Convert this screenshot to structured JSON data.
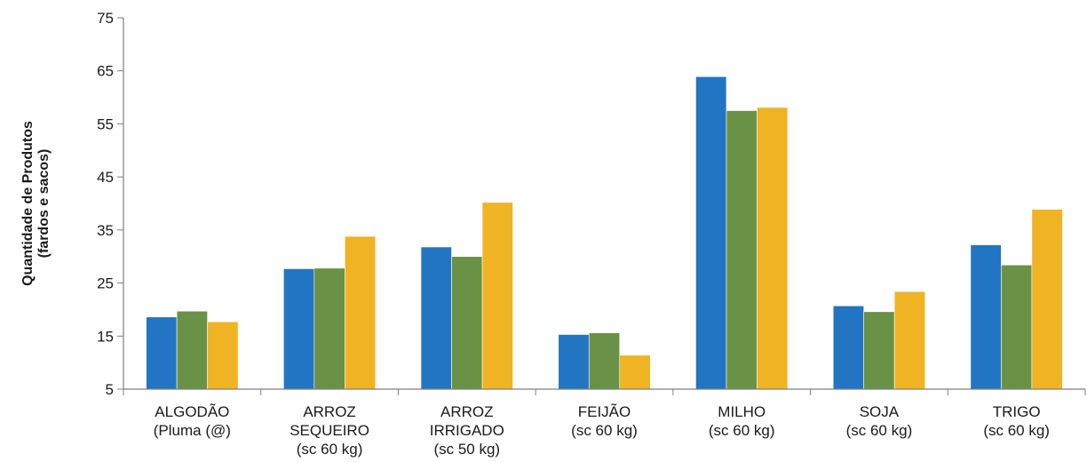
{
  "chart_data": {
    "type": "bar",
    "title": "",
    "xlabel": "",
    "ylabel": [
      "Quantidade de Produtos",
      "(fardos e sacos)"
    ],
    "ylim": [
      5,
      75
    ],
    "yticks": [
      5,
      15,
      25,
      35,
      45,
      55,
      65,
      75
    ],
    "grid": false,
    "legend": "none",
    "categories": [
      [
        "ALGODÃO",
        "(Pluma (@)"
      ],
      [
        "ARROZ",
        "SEQUEIRO",
        "(sc 60 kg)"
      ],
      [
        "ARROZ",
        "IRRIGADO",
        "(sc 50 kg)"
      ],
      [
        "FEIJÃO",
        "(sc 60 kg)"
      ],
      [
        "MILHO",
        "(sc 60 kg)"
      ],
      [
        "SOJA",
        "(sc 60 kg)"
      ],
      [
        "TRIGO",
        "(sc 60 kg)"
      ]
    ],
    "series": [
      {
        "color": "#2275c3",
        "values": [
          18.6,
          27.7,
          31.8,
          15.3,
          63.9,
          20.7,
          32.2
        ]
      },
      {
        "color": "#6a9246",
        "values": [
          19.7,
          27.8,
          30.0,
          15.6,
          57.5,
          19.6,
          28.4
        ]
      },
      {
        "color": "#f0b323",
        "values": [
          17.7,
          33.8,
          40.2,
          11.4,
          58.1,
          23.4,
          38.9
        ]
      }
    ]
  }
}
